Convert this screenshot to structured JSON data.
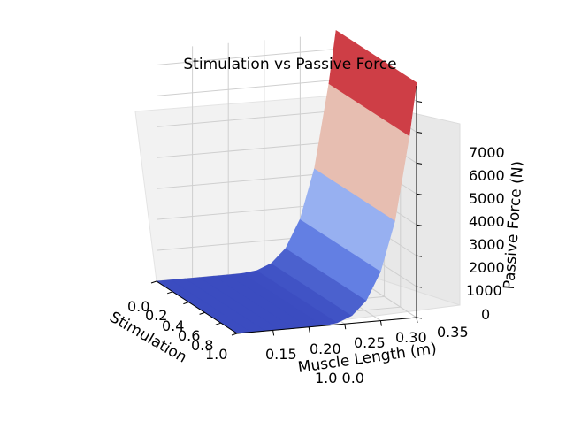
{
  "chart_data": {
    "type": "surface",
    "title": "Stimulation vs Passive Force",
    "xlabel": "Stimulation",
    "ylabel": "Muscle Length (m)",
    "zlabel": "Passive Force (N)",
    "x_ticks": [
      "0.0",
      "0.2",
      "0.4",
      "0.6",
      "0.8",
      "1.0"
    ],
    "y_ticks": [
      "0.15",
      "0.20",
      "0.25",
      "0.30",
      "0.35"
    ],
    "z_ticks": [
      "0",
      "1000",
      "2000",
      "3000",
      "4000",
      "5000",
      "6000",
      "7000"
    ],
    "x_range": [
      0.0,
      1.0
    ],
    "y_range": [
      0.1,
      0.35
    ],
    "z_range": [
      0,
      7500
    ],
    "colormap": "coolwarm",
    "grid": true,
    "offset_text": "1.0 0.0",
    "surface": {
      "muscle_length": [
        0.1,
        0.12,
        0.14,
        0.16,
        0.18,
        0.2,
        0.22,
        0.24,
        0.26,
        0.28,
        0.3,
        0.32,
        0.34,
        0.35
      ],
      "passive_force": [
        0,
        0,
        0,
        0,
        0,
        0,
        5,
        60,
        250,
        700,
        1600,
        3200,
        5900,
        7600
      ],
      "note_x_independent": true
    }
  }
}
